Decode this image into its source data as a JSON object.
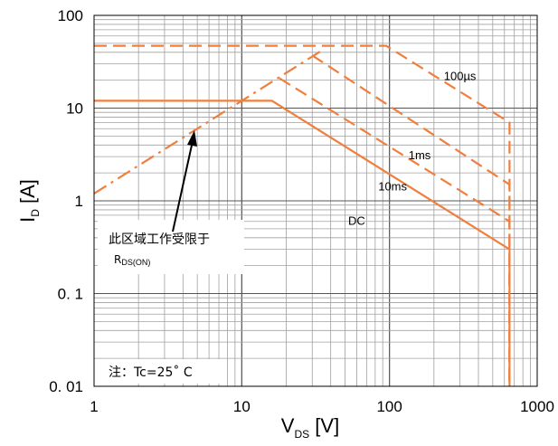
{
  "chart_data": {
    "type": "line",
    "xscale": "log",
    "yscale": "log",
    "xlim": [
      1,
      1000
    ],
    "ylim": [
      0.01,
      100
    ],
    "grid": true,
    "x_ticks": [
      "1",
      "10",
      "100",
      "1000"
    ],
    "y_ticks": [
      "100",
      "10",
      "1",
      "0. 1",
      "0. 01"
    ],
    "xlabel": {
      "main": "V",
      "sub": "DS",
      "unit": "[V]"
    },
    "ylabel": {
      "main": "I",
      "sub": "D",
      "unit": "[A]"
    },
    "colors": {
      "curve": "#f07f3c",
      "grid": "#a0a0a0",
      "axis": "#000000"
    },
    "series": [
      {
        "name": "DC",
        "style": "solid",
        "points": [
          [
            1,
            12
          ],
          [
            16,
            12
          ],
          [
            650,
            0.3
          ],
          [
            650,
            0.01
          ]
        ]
      },
      {
        "name": "10ms",
        "style": "dashed",
        "points": [
          [
            18,
            21
          ],
          [
            650,
            0.6
          ],
          [
            650,
            0.01
          ]
        ]
      },
      {
        "name": "1ms",
        "style": "dashed",
        "points": [
          [
            30,
            37
          ],
          [
            650,
            1.5
          ],
          [
            650,
            0.01
          ]
        ]
      },
      {
        "name": "100µs",
        "style": "dashed",
        "points": [
          [
            1,
            47
          ],
          [
            95,
            47
          ],
          [
            650,
            7
          ],
          [
            650,
            0.01
          ]
        ]
      },
      {
        "name": "",
        "style": "dashdot",
        "points": [
          [
            1,
            1.2
          ],
          [
            35,
            42
          ]
        ]
      }
    ],
    "curve_labels": [
      {
        "text": "100µs",
        "x": 300,
        "y": 20
      },
      {
        "text": "1ms",
        "x": 160,
        "y": 2.8
      },
      {
        "text": "10ms",
        "x": 105,
        "y": 1.3
      },
      {
        "text": "DC",
        "x": 60,
        "y": 0.55
      }
    ],
    "annotations": {
      "rds_note": {
        "line1": "此区域工作受限于",
        "main": "R",
        "sub": "DS(ON)"
      },
      "tc_note": "注：Tc=25˚ C"
    }
  }
}
